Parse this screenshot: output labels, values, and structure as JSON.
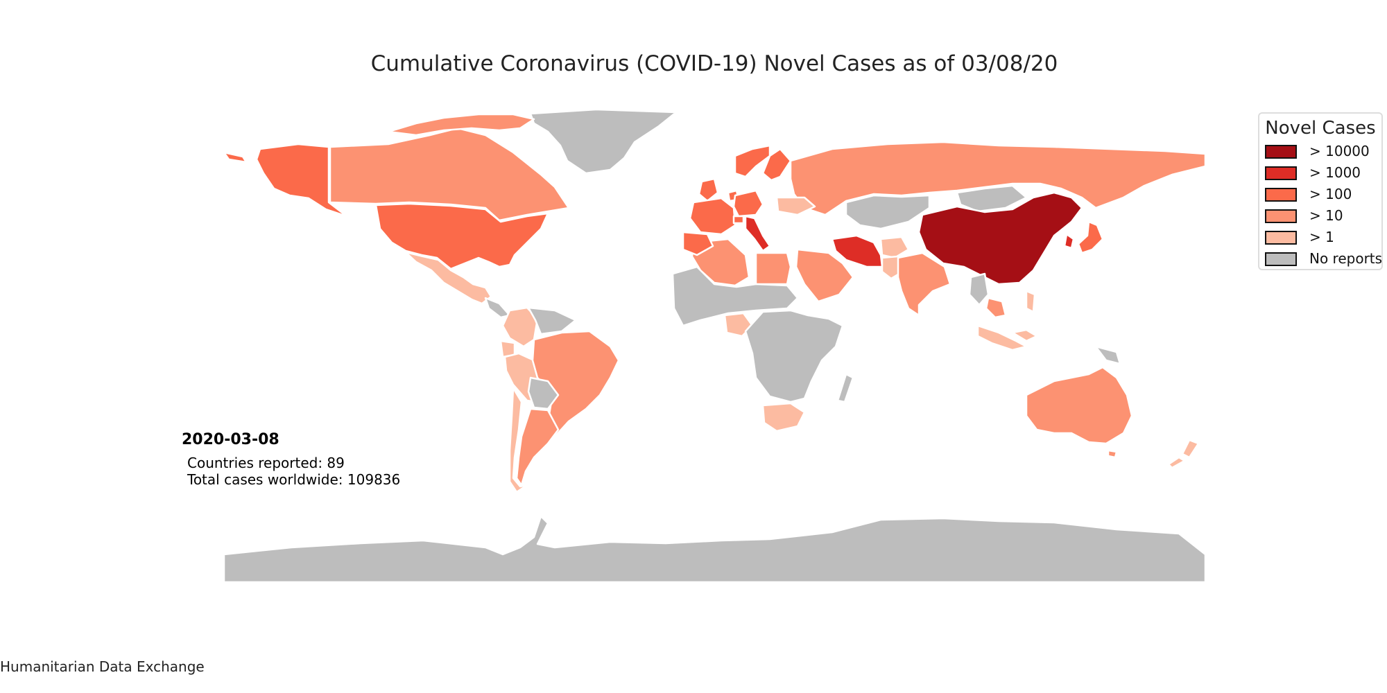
{
  "title": "Cumulative Coronavirus (COVID-19) Novel Cases as of 03/08/20",
  "legend": {
    "title": "Novel Cases",
    "items": [
      {
        "label": "> 10000",
        "color": "#a50f15"
      },
      {
        "label": "> 1000",
        "color": "#de2d26"
      },
      {
        "label": "> 100",
        "color": "#fb6a4a"
      },
      {
        "label": "> 10",
        "color": "#fc9272"
      },
      {
        "label": "> 1",
        "color": "#fcbba1"
      },
      {
        "label": "No reports",
        "color": "#bdbdbd"
      }
    ]
  },
  "annotation": {
    "date": "2020-03-08",
    "countries_reported": "Countries reported: 89",
    "total_cases": "Total cases worldwide: 109836"
  },
  "source": "Humanitarian Data Exchange",
  "map": {
    "type": "choropleth",
    "regions": [
      {
        "id": "china",
        "category": "> 10000"
      },
      {
        "id": "italy",
        "category": "> 1000"
      },
      {
        "id": "south-korea",
        "category": "> 1000"
      },
      {
        "id": "iran",
        "category": "> 1000"
      },
      {
        "id": "germany",
        "category": "> 100"
      },
      {
        "id": "france",
        "category": "> 100"
      },
      {
        "id": "spain",
        "category": "> 100"
      },
      {
        "id": "norway",
        "category": "> 100"
      },
      {
        "id": "sweden",
        "category": "> 100"
      },
      {
        "id": "switzerland",
        "category": "> 100"
      },
      {
        "id": "united-kingdom",
        "category": "> 100"
      },
      {
        "id": "netherlands",
        "category": "> 100"
      },
      {
        "id": "japan",
        "category": "> 100"
      },
      {
        "id": "united-states",
        "category": "> 100"
      },
      {
        "id": "alaska",
        "category": "> 100"
      },
      {
        "id": "canada",
        "category": "> 10"
      },
      {
        "id": "russia",
        "category": "> 10"
      },
      {
        "id": "brazil",
        "category": "> 10"
      },
      {
        "id": "argentina",
        "category": "> 10"
      },
      {
        "id": "chile",
        "category": "> 1"
      },
      {
        "id": "australia",
        "category": "> 10"
      },
      {
        "id": "india",
        "category": "> 10"
      },
      {
        "id": "egypt",
        "category": "> 10"
      },
      {
        "id": "algeria",
        "category": "> 10"
      },
      {
        "id": "saudi-arabia",
        "category": "> 10"
      },
      {
        "id": "malaysia",
        "category": "> 10"
      },
      {
        "id": "new-zealand",
        "category": "> 1"
      },
      {
        "id": "mexico",
        "category": "> 1"
      },
      {
        "id": "colombia",
        "category": "> 1"
      },
      {
        "id": "ecuador",
        "category": "> 1"
      },
      {
        "id": "peru",
        "category": "> 1"
      },
      {
        "id": "south-africa",
        "category": "> 1"
      },
      {
        "id": "nigeria",
        "category": "> 1"
      },
      {
        "id": "pakistan",
        "category": "> 1"
      },
      {
        "id": "afghanistan",
        "category": "> 1"
      },
      {
        "id": "indonesia",
        "category": "> 1"
      },
      {
        "id": "philippines",
        "category": "> 1"
      },
      {
        "id": "ukraine",
        "category": "> 1"
      },
      {
        "id": "greenland",
        "category": "No reports"
      },
      {
        "id": "antarctica",
        "category": "No reports"
      },
      {
        "id": "kazakhstan",
        "category": "No reports"
      },
      {
        "id": "mongolia",
        "category": "No reports"
      },
      {
        "id": "africa-sahara",
        "category": "No reports"
      },
      {
        "id": "central-africa",
        "category": "No reports"
      },
      {
        "id": "madagascar",
        "category": "No reports"
      },
      {
        "id": "bolivia",
        "category": "No reports"
      },
      {
        "id": "venezuela",
        "category": "No reports"
      },
      {
        "id": "papua-new-guinea",
        "category": "No reports"
      },
      {
        "id": "myanmar",
        "category": "No reports"
      }
    ]
  }
}
